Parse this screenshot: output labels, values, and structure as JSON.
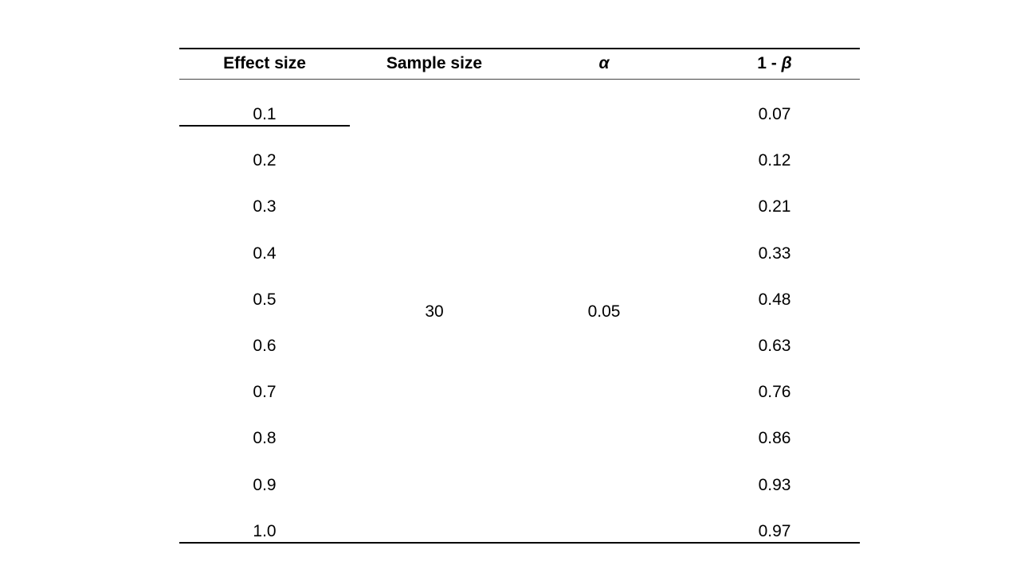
{
  "table": {
    "headers": {
      "effect_size": "Effect size",
      "sample_size": "Sample size",
      "alpha": "α",
      "power_prefix": "1 - ",
      "beta": "β"
    },
    "sample_size_value": "30",
    "alpha_value": "0.05",
    "rows": [
      {
        "effect": "0.1",
        "power": "0.07"
      },
      {
        "effect": "0.2",
        "power": "0.12"
      },
      {
        "effect": "0.3",
        "power": "0.21"
      },
      {
        "effect": "0.4",
        "power": "0.33"
      },
      {
        "effect": "0.5",
        "power": "0.48"
      },
      {
        "effect": "0.6",
        "power": "0.63"
      },
      {
        "effect": "0.7",
        "power": "0.76"
      },
      {
        "effect": "0.8",
        "power": "0.86"
      },
      {
        "effect": "0.9",
        "power": "0.93"
      },
      {
        "effect": "1.0",
        "power": "0.97"
      }
    ]
  }
}
